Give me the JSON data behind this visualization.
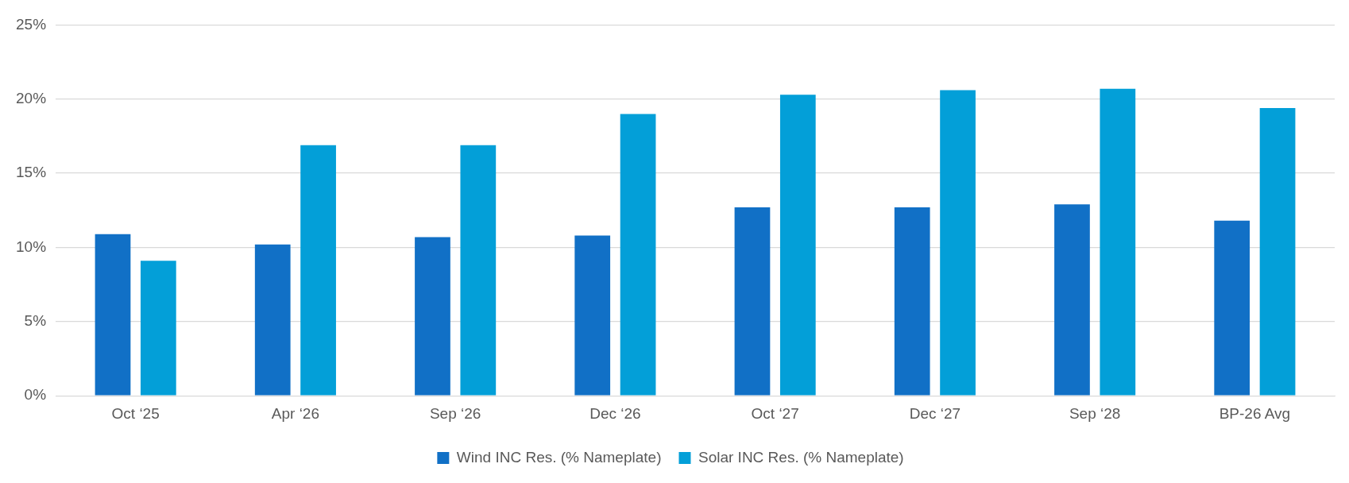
{
  "chart_data": {
    "type": "bar",
    "categories": [
      "Oct ‘25",
      "Apr ‘26",
      "Sep ‘26",
      "Dec ‘26",
      "Oct ‘27",
      "Dec ‘27",
      "Sep ‘28",
      "BP-26 Avg"
    ],
    "series": [
      {
        "name": "Wind INC Res. (% Nameplate)",
        "color": "#1170c6",
        "values": [
          10.9,
          10.2,
          10.7,
          10.8,
          12.7,
          12.7,
          12.9,
          11.8
        ]
      },
      {
        "name": "Solar INC Res. (% Nameplate)",
        "color": "#039fd8",
        "values": [
          9.1,
          16.9,
          16.9,
          19.0,
          20.3,
          20.6,
          20.7,
          19.4
        ]
      }
    ],
    "ylim": [
      0,
      25
    ],
    "yticks": [
      {
        "value": 0,
        "label": "0%"
      },
      {
        "value": 5,
        "label": "5%"
      },
      {
        "value": 10,
        "label": "10%"
      },
      {
        "value": 15,
        "label": "15%"
      },
      {
        "value": 20,
        "label": "20%"
      },
      {
        "value": 25,
        "label": "25%"
      }
    ],
    "grid": "y",
    "legend": "bottom"
  }
}
